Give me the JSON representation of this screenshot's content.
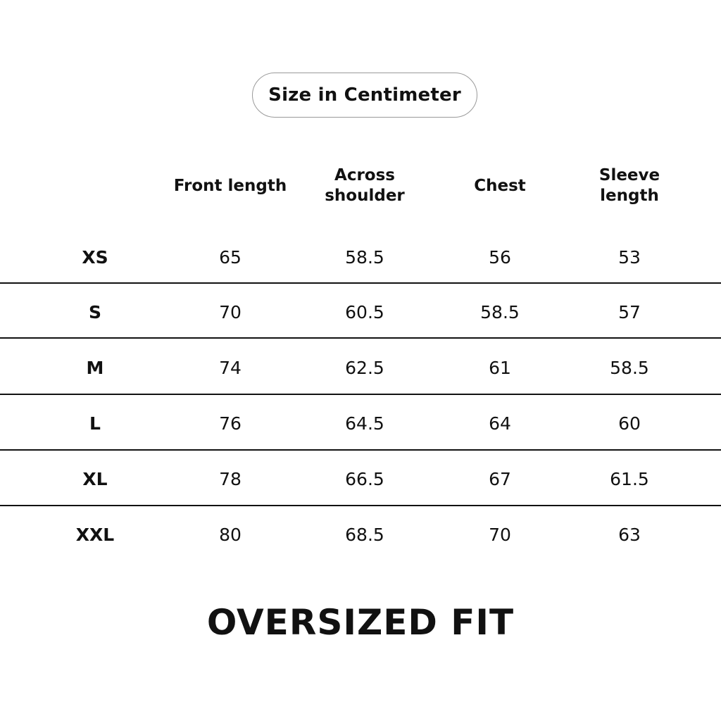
{
  "unit_label": "Size in Centimeter",
  "columns": [
    {
      "key": "front_length",
      "label_lines": [
        "Front length"
      ]
    },
    {
      "key": "across_shoulder",
      "label_lines": [
        "Across",
        "shoulder"
      ]
    },
    {
      "key": "chest",
      "label_lines": [
        "Chest"
      ]
    },
    {
      "key": "sleeve_length",
      "label_lines": [
        "Sleeve",
        "length"
      ]
    }
  ],
  "rows": [
    {
      "size": "XS",
      "front_length": "65",
      "across_shoulder": "58.5",
      "chest": "56",
      "sleeve_length": "53"
    },
    {
      "size": "S",
      "front_length": "70",
      "across_shoulder": "60.5",
      "chest": "58.5",
      "sleeve_length": "57"
    },
    {
      "size": "M",
      "front_length": "74",
      "across_shoulder": "62.5",
      "chest": "61",
      "sleeve_length": "58.5"
    },
    {
      "size": "L",
      "front_length": "76",
      "across_shoulder": "64.5",
      "chest": "64",
      "sleeve_length": "60"
    },
    {
      "size": "XL",
      "front_length": "78",
      "across_shoulder": "66.5",
      "chest": "67",
      "sleeve_length": "61.5"
    },
    {
      "size": "XXL",
      "front_length": "80",
      "across_shoulder": "68.5",
      "chest": "70",
      "sleeve_length": "63"
    }
  ],
  "fit_title": "OVERSIZED FIT"
}
